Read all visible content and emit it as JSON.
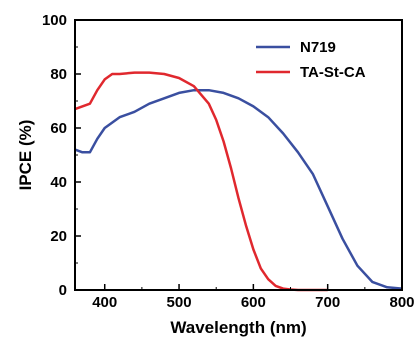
{
  "chart_data": {
    "type": "line",
    "xlabel": "Wavelength (nm)",
    "ylabel": "IPCE (%)",
    "xlim": [
      360,
      800
    ],
    "ylim": [
      0,
      100
    ],
    "xticks": [
      400,
      500,
      600,
      700,
      800
    ],
    "yticks": [
      0,
      20,
      40,
      60,
      80,
      100
    ],
    "grid": false,
    "legend_position": "top-right",
    "series": [
      {
        "name": "N719",
        "color": "#3a4fa0",
        "x": [
          360,
          370,
          380,
          390,
          400,
          420,
          440,
          460,
          480,
          500,
          520,
          540,
          560,
          580,
          600,
          620,
          640,
          660,
          680,
          700,
          720,
          740,
          760,
          780,
          800
        ],
        "y": [
          52,
          51,
          51,
          56,
          60,
          64,
          66,
          69,
          71,
          73,
          74,
          74,
          73,
          71,
          68,
          64,
          58,
          51,
          43,
          31,
          19,
          9,
          3,
          1,
          0.5
        ]
      },
      {
        "name": "TA-St-CA",
        "color": "#e0282e",
        "x": [
          360,
          380,
          390,
          400,
          410,
          420,
          440,
          460,
          480,
          500,
          520,
          540,
          550,
          560,
          570,
          580,
          590,
          600,
          610,
          620,
          630,
          640,
          650,
          660,
          680,
          700
        ],
        "y": [
          67,
          69,
          74,
          78,
          80,
          80,
          80.5,
          80.5,
          80,
          78.5,
          75.5,
          69,
          63,
          55,
          45,
          34,
          24,
          15,
          8,
          4,
          1.5,
          0.5,
          0.2,
          0,
          0,
          0
        ]
      }
    ]
  }
}
